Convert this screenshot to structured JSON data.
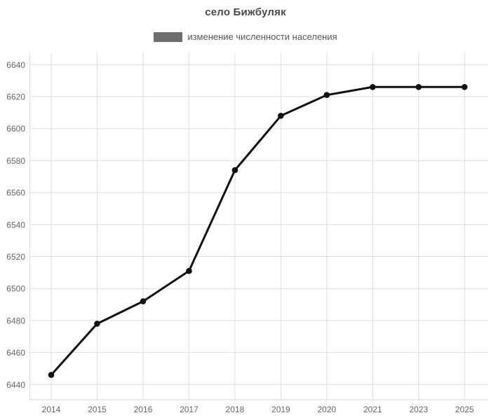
{
  "chart_data": {
    "type": "line",
    "title": "село Бижбуляк",
    "series_name": "изменение численности населения",
    "categories": [
      "2014",
      "2015",
      "2016",
      "2017",
      "2018",
      "2019",
      "2020",
      "2021",
      "2023",
      "2025"
    ],
    "values": [
      6446,
      6478,
      6492,
      6511,
      6574,
      6608,
      6621,
      6626,
      6626,
      6626
    ],
    "xlabel": "",
    "ylabel": "",
    "y_ticks": [
      6440,
      6460,
      6480,
      6500,
      6520,
      6540,
      6560,
      6580,
      6600,
      6620,
      6640
    ],
    "ylim": [
      6430,
      6648
    ],
    "grid": true,
    "legend_position": "top-center",
    "colors": {
      "background": "#ffffff",
      "line": "#111111",
      "point": "#111111",
      "grid": "#dedede",
      "axis_line": "#d0d0d0",
      "axis_label": "#666666",
      "title": "#4a4a4a",
      "legend_text": "#555555",
      "legend_swatch": "#6e6e6e"
    }
  }
}
